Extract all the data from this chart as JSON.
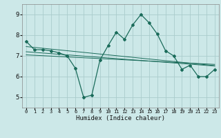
{
  "title": "",
  "xlabel": "Humidex (Indice chaleur)",
  "background_color": "#cce8e8",
  "grid_color": "#aacccc",
  "line_color": "#1a6b5a",
  "xlim": [
    -0.5,
    23.5
  ],
  "ylim": [
    4.5,
    9.5
  ],
  "yticks": [
    5,
    6,
    7,
    8,
    9
  ],
  "xticks": [
    0,
    1,
    2,
    3,
    4,
    5,
    6,
    7,
    8,
    9,
    10,
    11,
    12,
    13,
    14,
    15,
    16,
    17,
    18,
    19,
    20,
    21,
    22,
    23
  ],
  "main_y": [
    7.7,
    7.3,
    7.3,
    7.25,
    7.15,
    7.0,
    6.4,
    5.0,
    5.1,
    6.8,
    7.5,
    8.15,
    7.8,
    8.5,
    9.0,
    8.6,
    8.05,
    7.25,
    7.0,
    6.35,
    6.55,
    6.0,
    6.0,
    6.35
  ],
  "trend1_y": [
    7.05,
    7.03,
    7.01,
    6.99,
    6.97,
    6.95,
    6.93,
    6.91,
    6.89,
    6.87,
    6.85,
    6.83,
    6.81,
    6.79,
    6.77,
    6.75,
    6.73,
    6.71,
    6.69,
    6.67,
    6.65,
    6.63,
    6.61,
    6.59
  ],
  "trend2_y": [
    7.2,
    7.17,
    7.14,
    7.11,
    7.08,
    7.05,
    7.02,
    6.99,
    6.96,
    6.93,
    6.9,
    6.87,
    6.84,
    6.81,
    6.78,
    6.75,
    6.72,
    6.69,
    6.66,
    6.63,
    6.6,
    6.57,
    6.54,
    6.51
  ],
  "trend3_y": [
    7.45,
    7.41,
    7.37,
    7.33,
    7.29,
    7.25,
    7.21,
    7.17,
    7.13,
    7.09,
    7.05,
    7.01,
    6.97,
    6.93,
    6.89,
    6.85,
    6.81,
    6.77,
    6.73,
    6.69,
    6.65,
    6.61,
    6.57,
    6.53
  ]
}
